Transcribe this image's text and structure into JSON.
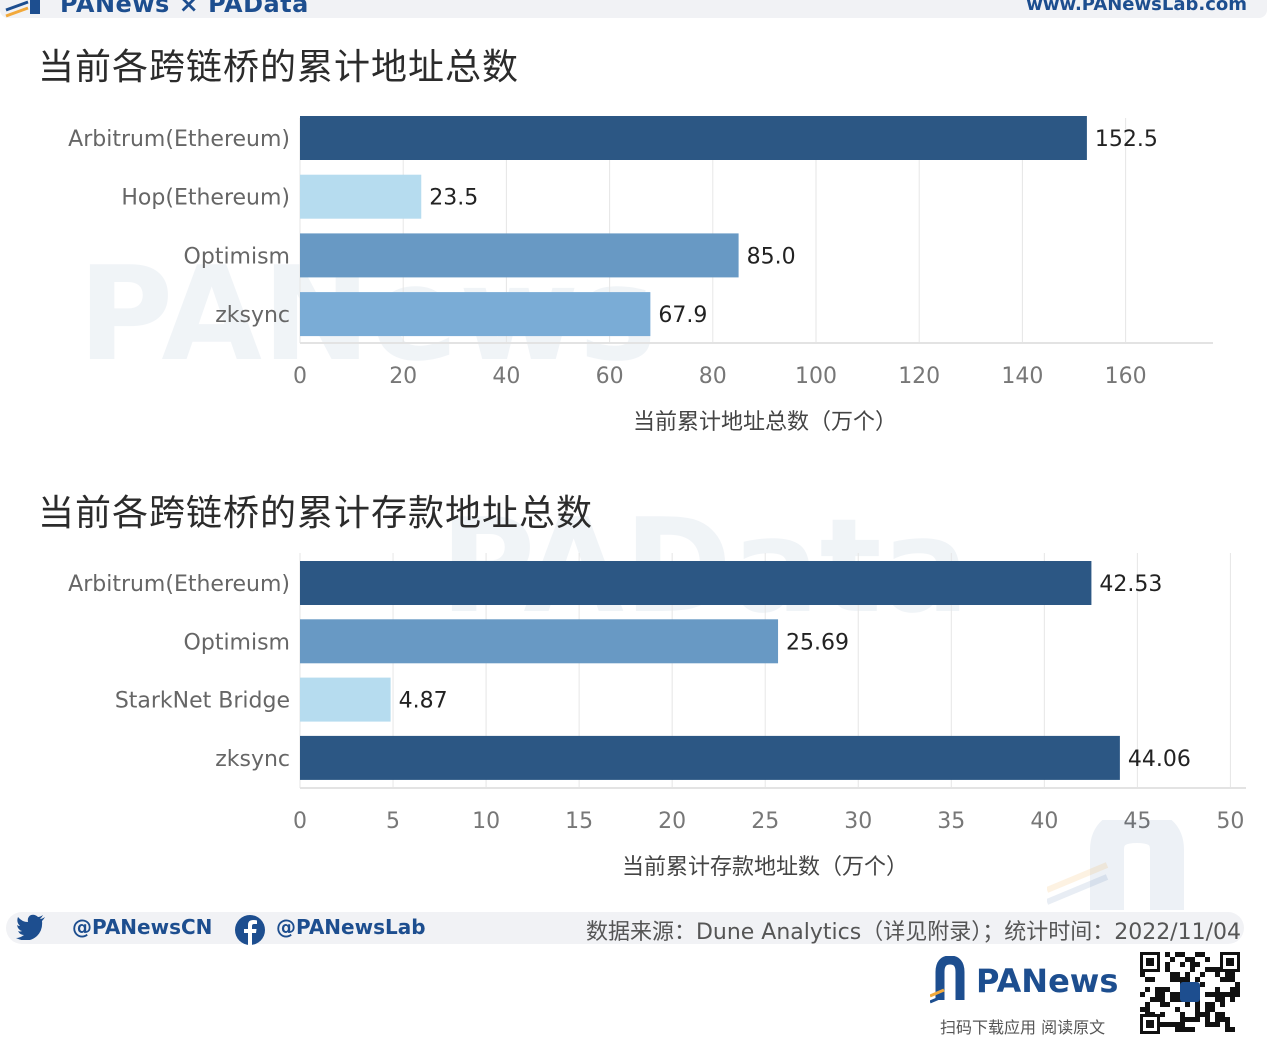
{
  "header": {
    "brand": "PANews × PAData",
    "url": "www.PANewsLab.com"
  },
  "watermarks": {
    "top": "PANews",
    "bottom": "PAData"
  },
  "chart_data": [
    {
      "type": "bar",
      "orientation": "horizontal",
      "title": "当前各跨链桥的累计地址总数",
      "categories": [
        "Arbitrum(Ethereum)",
        "Hop(Ethereum)",
        "Optimism",
        "zksync"
      ],
      "values": [
        152.5,
        23.5,
        85.0,
        67.9
      ],
      "value_labels": [
        "152.5",
        "23.5",
        "85.0",
        "67.9"
      ],
      "bar_colors": [
        "#2c5784",
        "#b6dcef",
        "#6899c4",
        "#7aacd6"
      ],
      "xlabel": "当前累计地址总数（万个）",
      "xlim": [
        0,
        175
      ],
      "xticks": [
        0,
        20,
        40,
        60,
        80,
        100,
        120,
        140,
        160
      ],
      "grid": true
    },
    {
      "type": "bar",
      "orientation": "horizontal",
      "title": "当前各跨链桥的累计存款地址总数",
      "categories": [
        "Arbitrum(Ethereum)",
        "Optimism",
        "StarkNet Bridge",
        "zksync"
      ],
      "values": [
        42.53,
        25.69,
        4.87,
        44.06
      ],
      "value_labels": [
        "42.53",
        "25.69",
        "4.87",
        "44.06"
      ],
      "bar_colors": [
        "#2c5784",
        "#6899c4",
        "#b6dcef",
        "#2c5784"
      ],
      "xlabel": "当前累计存款地址数（万个）",
      "xlim": [
        0,
        50.3
      ],
      "xticks": [
        0,
        5,
        10,
        15,
        20,
        25,
        30,
        35,
        40,
        45,
        50
      ],
      "grid": true
    }
  ],
  "footer": {
    "twitter": "@PANewsCN",
    "facebook": "@PANewsLab",
    "source": "数据来源：Dune Analytics（详见附录）；统计时间：2022/11/04",
    "app_name": "PANews",
    "app_caption": "扫码下载应用 阅读原文"
  },
  "colors": {
    "brand": "#1d4e8f",
    "accent": "#f2a93b"
  }
}
